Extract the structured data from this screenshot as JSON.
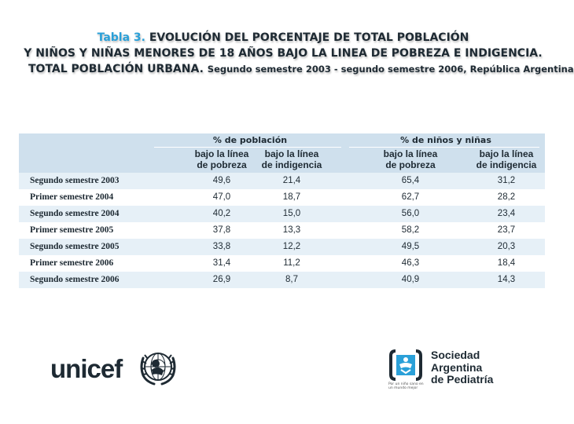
{
  "title": {
    "label": "Tabla 3.",
    "line1": "EVOLUCIÓN DEL PORCENTAJE DE TOTAL POBLACIÓN",
    "line2": "Y NIÑOS Y NIÑAS MENORES DE 18 AÑOS BAJO LA LINEA DE POBREZA E INDIGENCIA.",
    "line3_bold": "TOTAL POBLACIÓN URBANA.",
    "line3_rest": "Segundo semestre 2003 - segundo semestre 2006, República Argentina"
  },
  "table": {
    "group_headers": [
      "% de población",
      "% de niños y niñas"
    ],
    "column_headers": [
      {
        "line1": "bajo la línea",
        "line2": "de pobreza"
      },
      {
        "line1": "bajo la línea",
        "line2": "de indigencia"
      },
      {
        "line1": "bajo la línea",
        "line2": "de pobreza"
      },
      {
        "line1": "bajo la línea",
        "line2": "de indigencia"
      }
    ],
    "rows": [
      {
        "period": "Segundo semestre 2003",
        "values": [
          "49,6",
          "21,4",
          "65,4",
          "31,2"
        ]
      },
      {
        "period": "Primer semestre 2004",
        "values": [
          "47,0",
          "18,7",
          "62,7",
          "28,2"
        ]
      },
      {
        "period": "Segundo semestre 2004",
        "values": [
          "40,2",
          "15,0",
          "56,0",
          "23,4"
        ]
      },
      {
        "period": "Primer semestre 2005",
        "values": [
          "37,8",
          "13,3",
          "58,2",
          "23,7"
        ]
      },
      {
        "period": "Segundo semestre 2005",
        "values": [
          "33,8",
          "12,2",
          "49,5",
          "20,3"
        ]
      },
      {
        "period": "Primer semestre 2006",
        "values": [
          "31,4",
          "11,2",
          "46,3",
          "18,4"
        ]
      },
      {
        "period": "Segundo semestre 2006",
        "values": [
          "26,9",
          "8,7",
          "40,9",
          "14,3"
        ]
      }
    ]
  },
  "logos": {
    "unicef": "unicef",
    "sap_name": [
      "Sociedad",
      "Argentina",
      "de Pediatría"
    ],
    "sap_tagline": "Por un niño sano en un mundo mejor"
  }
}
